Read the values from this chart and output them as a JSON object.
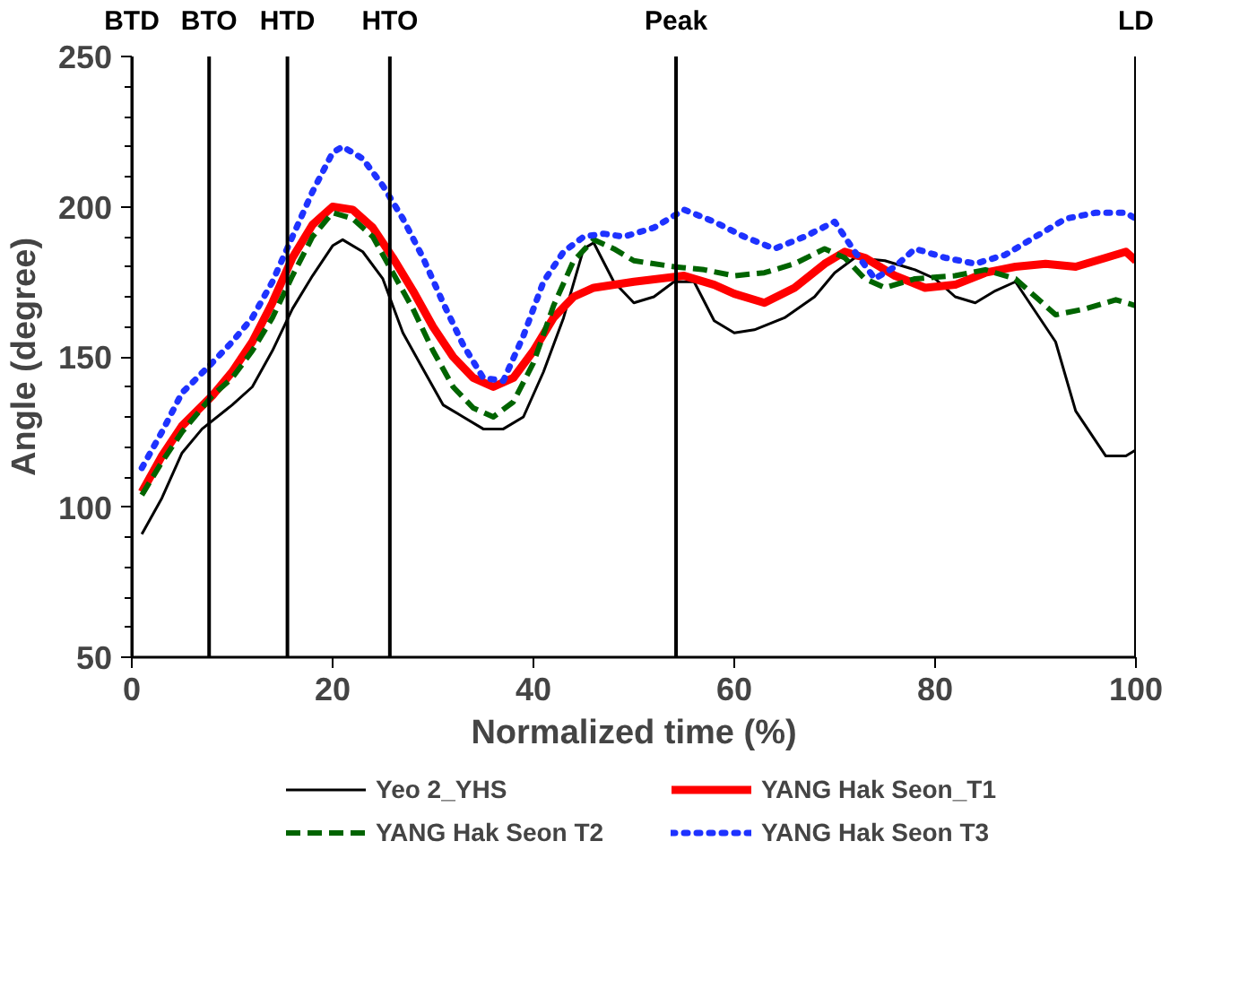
{
  "chart_data": {
    "type": "line",
    "xlabel": "Normalized time (%)",
    "ylabel": "Angle (degree)",
    "xlim": [
      0,
      100
    ],
    "xticks": [
      0,
      20,
      40,
      60,
      80,
      100
    ],
    "ylim": [
      50,
      250
    ],
    "yticks": [
      50,
      100,
      150,
      200,
      250
    ],
    "grid": false,
    "legend": "bottom",
    "marker": "none",
    "ref_lines": [
      {
        "axis": "x",
        "value": 0,
        "label": "BTD",
        "color": "#000000"
      },
      {
        "axis": "x",
        "value": 7.7,
        "label": "BTO",
        "color": "#000000"
      },
      {
        "axis": "x",
        "value": 15.5,
        "label": "HTD",
        "color": "#000000"
      },
      {
        "axis": "x",
        "value": 25.7,
        "label": "HTO",
        "color": "#000000"
      },
      {
        "axis": "x",
        "value": 54.2,
        "label": "Peak",
        "color": "#000000"
      },
      {
        "axis": "x",
        "value": 100,
        "label": "LD",
        "color": "#000000"
      }
    ],
    "series": [
      {
        "name": "Yeo 2_YHS",
        "color": "#000000",
        "line_style": "solid",
        "x": [
          1,
          3,
          5,
          7,
          10,
          12,
          14,
          16,
          18,
          20,
          21,
          23,
          25,
          27,
          29,
          31,
          33,
          35,
          37,
          39,
          41,
          43,
          45,
          46,
          48,
          50,
          52,
          54,
          56,
          58,
          60,
          62,
          65,
          68,
          70,
          72,
          75,
          78,
          80,
          82,
          84,
          86,
          88,
          90,
          92,
          94,
          96,
          97,
          99,
          100
        ],
        "values": [
          91,
          103,
          118,
          126,
          134,
          140,
          152,
          166,
          177,
          187,
          189,
          185,
          176,
          158,
          146,
          134,
          130,
          126,
          126,
          130,
          145,
          163,
          186,
          188,
          175,
          168,
          170,
          175,
          175,
          162,
          158,
          159,
          163,
          170,
          178,
          183,
          182,
          179,
          176,
          170,
          168,
          172,
          175,
          165,
          155,
          132,
          122,
          117,
          117,
          119
        ]
      },
      {
        "name": "YANG Hak Seon_T1",
        "color": "#ff0000",
        "line_style": "solid",
        "x": [
          1,
          3,
          5,
          8,
          10,
          12,
          14,
          16,
          18,
          20,
          22,
          24,
          26,
          28,
          30,
          32,
          34,
          36,
          38,
          40,
          42,
          44,
          46,
          50,
          55,
          58,
          60,
          63,
          66,
          69,
          71,
          73,
          76,
          79,
          82,
          85,
          88,
          91,
          94,
          97,
          99,
          100
        ],
        "values": [
          105,
          117,
          127,
          137,
          145,
          155,
          168,
          183,
          194,
          200,
          199,
          193,
          183,
          172,
          160,
          150,
          143,
          140,
          143,
          152,
          163,
          170,
          173,
          175,
          177,
          174,
          171,
          168,
          173,
          181,
          185,
          183,
          177,
          173,
          174,
          178,
          180,
          181,
          180,
          183,
          185,
          182
        ]
      },
      {
        "name": "YANG Hak Seon T2",
        "color": "#006400",
        "line_style": "dashed",
        "x": [
          1,
          3,
          5,
          8,
          10,
          12,
          14,
          16,
          18,
          20,
          22,
          24,
          26,
          28,
          30,
          32,
          34,
          36,
          38,
          40,
          42,
          44,
          46,
          48,
          50,
          54,
          57,
          60,
          63,
          66,
          69,
          71,
          73,
          75,
          78,
          82,
          85,
          88,
          90,
          92,
          95,
          98,
          100
        ],
        "values": [
          104,
          115,
          125,
          137,
          143,
          152,
          163,
          177,
          190,
          198,
          196,
          190,
          178,
          166,
          152,
          140,
          133,
          130,
          135,
          148,
          167,
          182,
          189,
          186,
          182,
          180,
          179,
          177,
          178,
          181,
          186,
          183,
          176,
          173,
          176,
          177,
          179,
          176,
          170,
          164,
          166,
          169,
          167
        ]
      },
      {
        "name": "YANG Hak Seon T3",
        "color": "#1e32ff",
        "line_style": "dotted",
        "x": [
          1,
          3,
          5,
          8,
          10,
          12,
          14,
          16,
          18,
          20,
          21,
          23,
          25,
          27,
          29,
          31,
          33,
          35,
          37,
          39,
          41,
          43,
          45,
          47,
          49,
          52,
          55,
          58,
          61,
          64,
          67,
          70,
          72,
          74,
          76,
          78,
          81,
          84,
          87,
          90,
          93,
          96,
          99,
          100
        ],
        "values": [
          113,
          125,
          138,
          148,
          155,
          163,
          175,
          190,
          205,
          218,
          220,
          216,
          207,
          196,
          183,
          168,
          154,
          143,
          142,
          157,
          175,
          185,
          190,
          191,
          190,
          193,
          199,
          195,
          190,
          186,
          190,
          195,
          185,
          176,
          180,
          186,
          183,
          181,
          184,
          190,
          196,
          198,
          198,
          196
        ]
      }
    ]
  }
}
